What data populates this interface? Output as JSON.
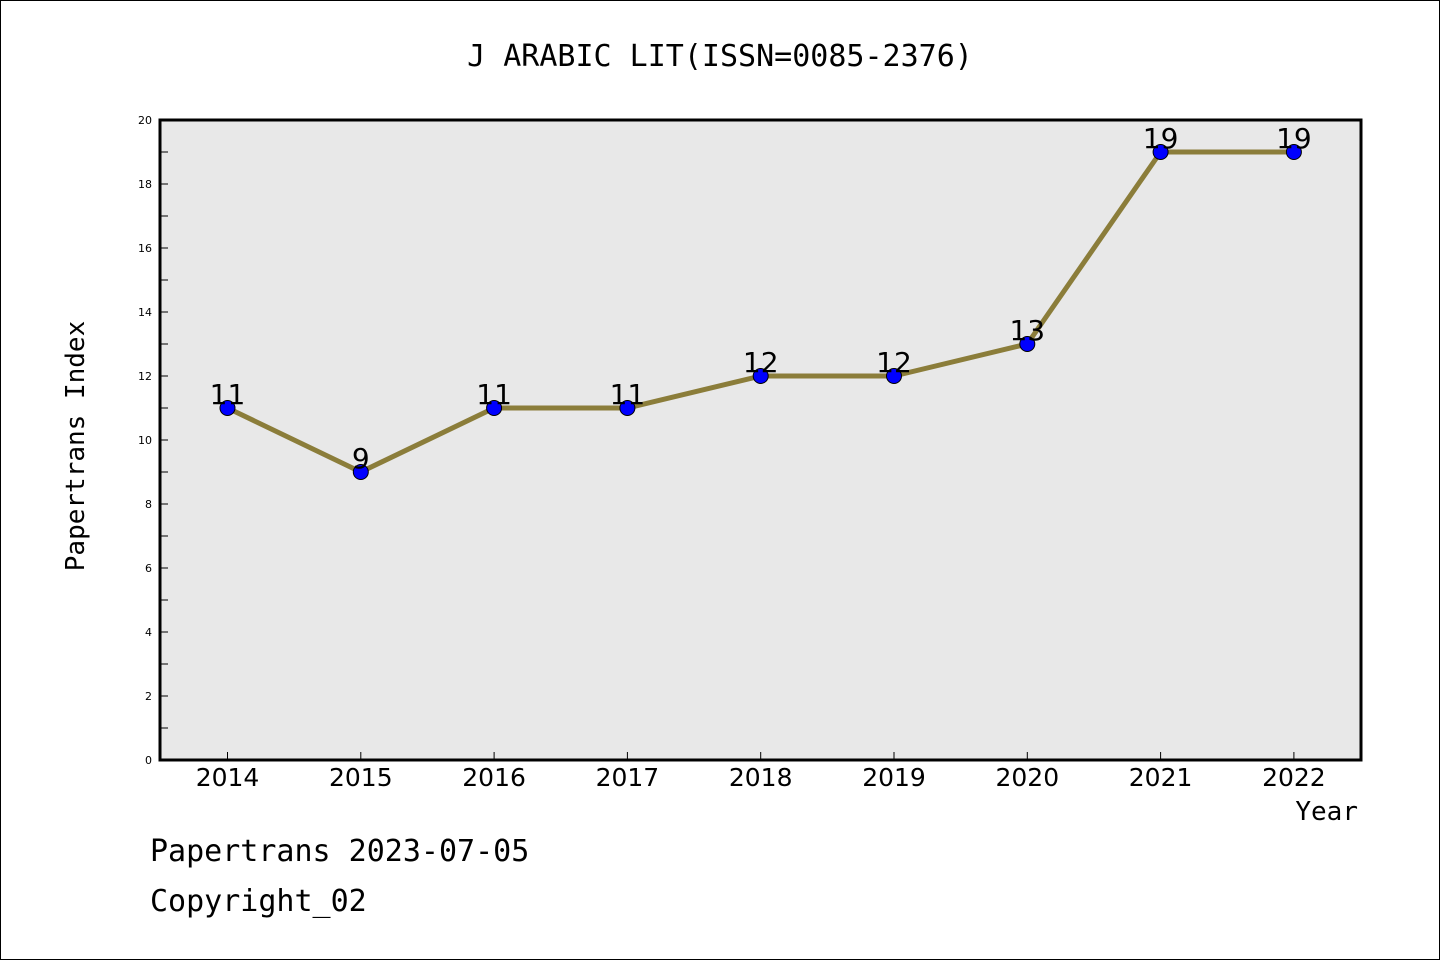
{
  "chart_data": {
    "type": "line",
    "title": "J ARABIC LIT(ISSN=0085-2376)",
    "xlabel": "Year",
    "ylabel": "Papertrans Index",
    "categories": [
      "2014",
      "2015",
      "2016",
      "2017",
      "2018",
      "2019",
      "2020",
      "2021",
      "2022"
    ],
    "series": [
      {
        "values": [
          11,
          9,
          11,
          11,
          12,
          12,
          13,
          19,
          19
        ]
      }
    ],
    "data_labels": [
      "11",
      "9",
      "11",
      "11",
      "12",
      "12",
      "13",
      "19",
      "19"
    ],
    "ylim": [
      0,
      20
    ],
    "yticks": [
      "0",
      "2",
      "4",
      "6",
      "8",
      "10",
      "12",
      "14",
      "16",
      "18",
      "20"
    ],
    "grid": false,
    "legend": "none",
    "colors": {
      "line": "#8b7d3a",
      "marker": "#0000ff",
      "plot_background": "#e8e8e8"
    }
  },
  "footer": {
    "line1": "Papertrans 2023-07-05",
    "line2": "Copyright_02"
  }
}
